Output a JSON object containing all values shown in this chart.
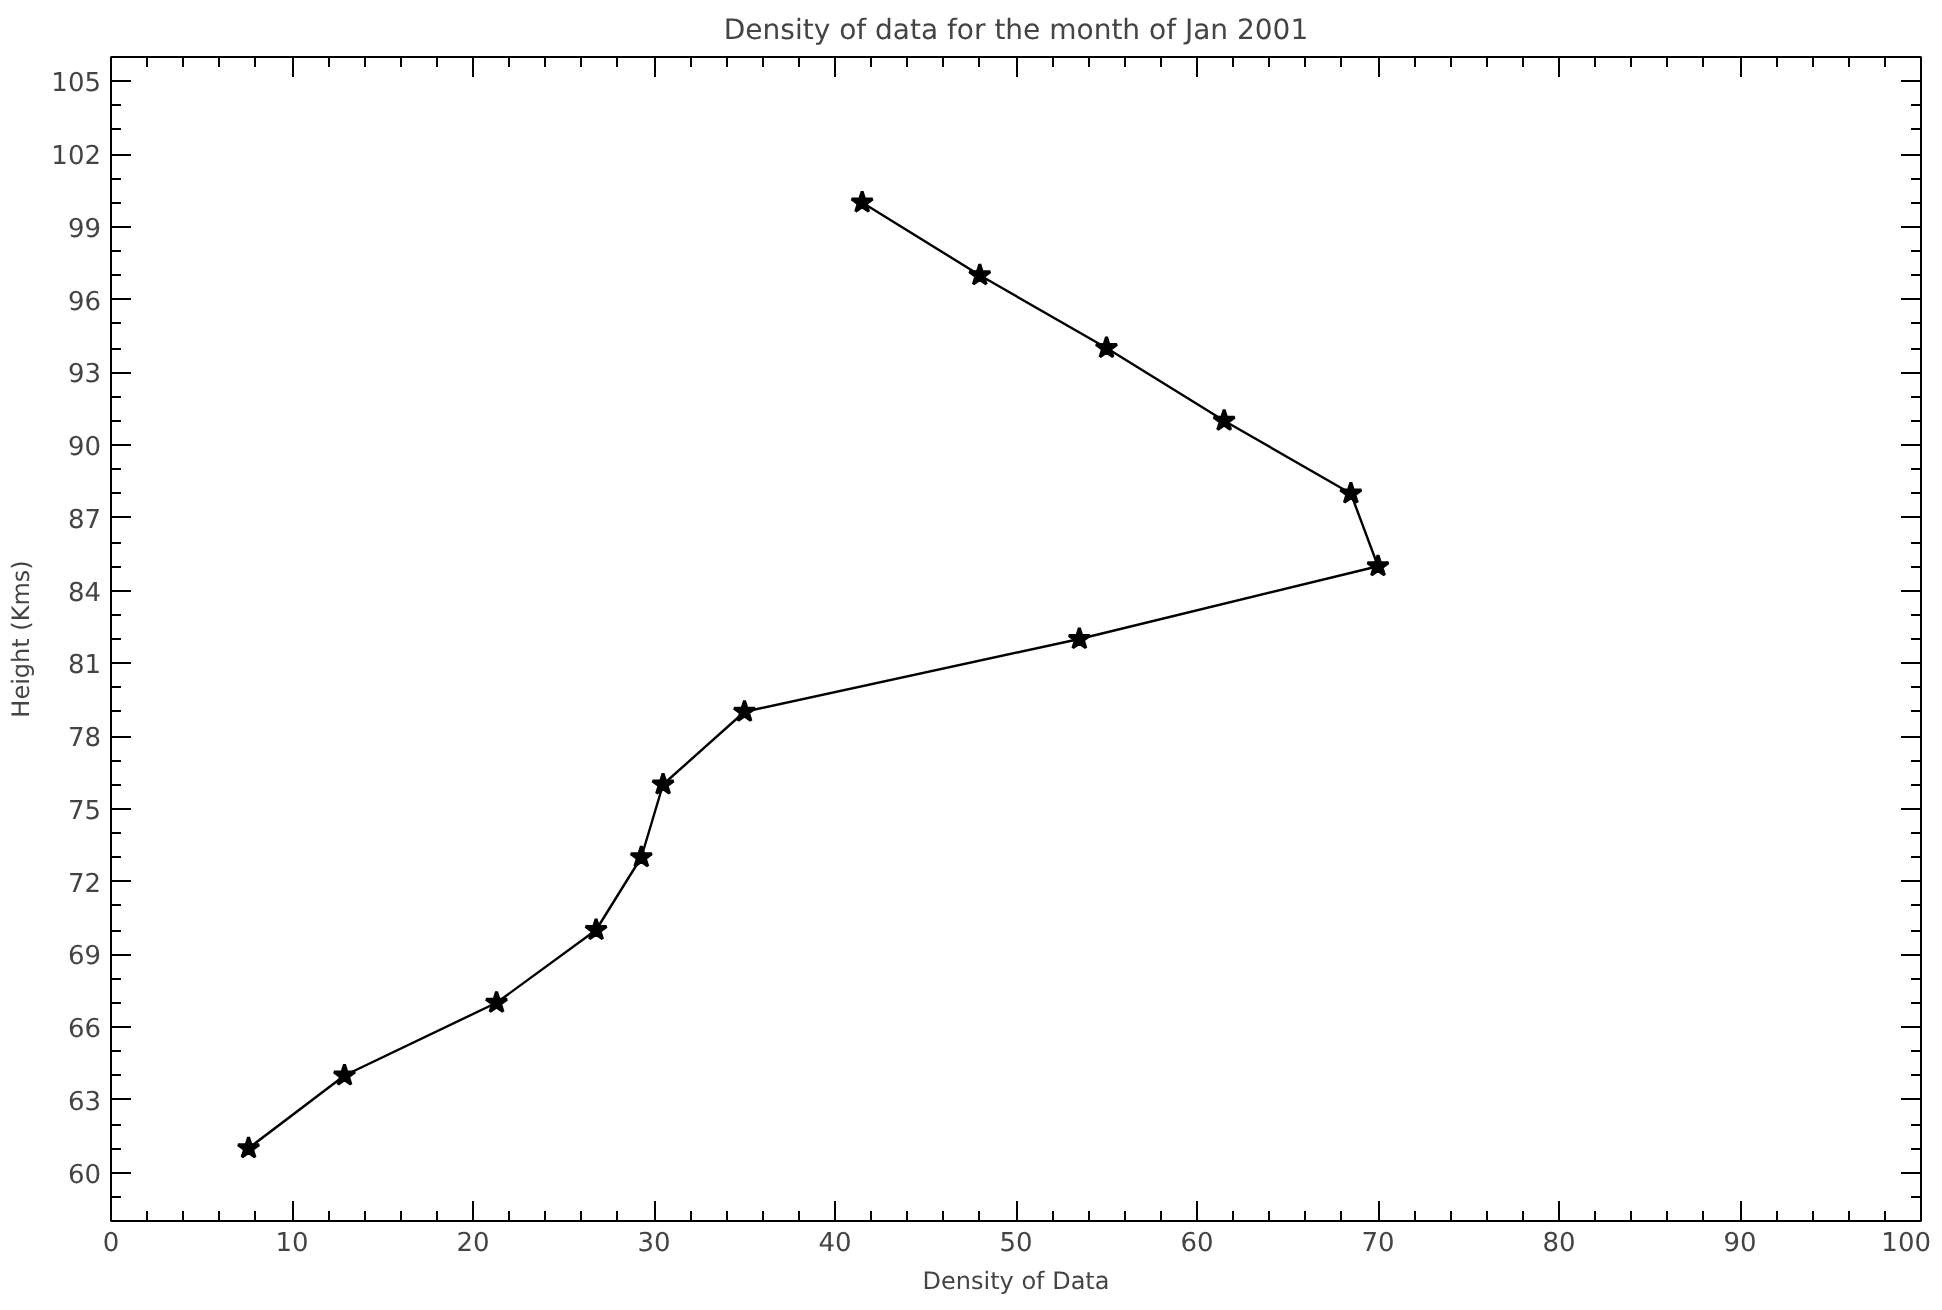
{
  "chart_data": {
    "type": "line",
    "title": "Density of data for the month of Jan 2001",
    "xlabel": "Density of Data",
    "ylabel": "Height (Kms)",
    "series": [
      {
        "color": "#000000",
        "x": [
          41.5,
          48,
          55,
          61.5,
          68.5,
          70,
          53.5,
          35,
          30.5,
          29.3,
          26.8,
          21.3,
          12.9,
          7.6
        ],
        "values": [
          100,
          97,
          94,
          91,
          88,
          85,
          82,
          79,
          76,
          73,
          70,
          67,
          64,
          61
        ]
      }
    ],
    "xlim": [
      0,
      100
    ],
    "xticks": [
      0,
      10,
      20,
      30,
      40,
      50,
      60,
      70,
      80,
      90,
      100
    ],
    "ylim": [
      58,
      106
    ],
    "yticks": [
      60,
      63,
      66,
      69,
      72,
      75,
      78,
      81,
      84,
      87,
      90,
      93,
      96,
      99,
      102,
      105
    ],
    "marker": "star",
    "line_style": "solid",
    "grid": false
  }
}
